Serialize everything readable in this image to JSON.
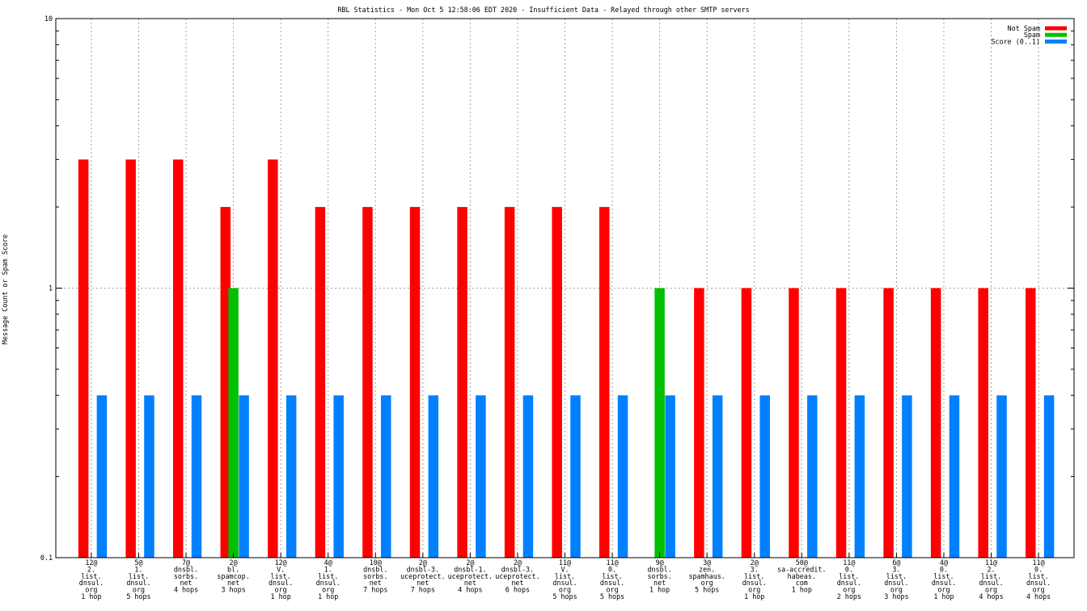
{
  "chart_data": {
    "type": "bar",
    "title": "RBL Statistics - Mon Oct  5 12:58:06 EDT 2020 - Insufficient Data - Relayed through other SMTP servers",
    "xlabel": "",
    "ylabel": "Message Count or Spam Score",
    "y_scale": "log",
    "ylim": [
      0.1,
      10
    ],
    "y_ticks": [
      "0.1",
      "1",
      "10"
    ],
    "grid": true,
    "legend_position": "top-right",
    "categories": [
      [
        "12@",
        "2.",
        "list.",
        "dnsul.",
        "org",
        "1 hop"
      ],
      [
        "5@",
        "1.",
        "list.",
        "dnsul.",
        "org",
        "5 hops"
      ],
      [
        "7@",
        "dnsbl.",
        "sorbs.",
        "net",
        "4 hops"
      ],
      [
        "2@",
        "bl.",
        "spamcop.",
        "net",
        "3 hops"
      ],
      [
        "12@",
        "V.",
        "list.",
        "dnsul.",
        "org",
        "1 hop"
      ],
      [
        "4@",
        "1.",
        "list.",
        "dnsul.",
        "org",
        "1 hop"
      ],
      [
        "10@",
        "dnsbl.",
        "sorbs.",
        "net",
        "7 hops"
      ],
      [
        "2@",
        "dnsbl-3.",
        "uceprotect.",
        "net",
        "7 hops"
      ],
      [
        "2@",
        "dnsbl-1.",
        "uceprotect.",
        "net",
        "4 hops"
      ],
      [
        "2@",
        "dnsbl-3.",
        "uceprotect.",
        "net",
        "6 hops"
      ],
      [
        "11@",
        "V.",
        "list.",
        "dnsul.",
        "org",
        "5 hops"
      ],
      [
        "11@",
        "0.",
        "list.",
        "dnsul.",
        "org",
        "5 hops"
      ],
      [
        "9@",
        "dnsbl.",
        "sorbs.",
        "net",
        "1 hop"
      ],
      [
        "3@",
        "zen.",
        "spamhaus.",
        "org",
        "5 hops"
      ],
      [
        "2@",
        "3.",
        "list.",
        "dnsul.",
        "org",
        "1 hop"
      ],
      [
        "50@",
        "sa-accredit.",
        "habeas.",
        "com",
        "1 hop"
      ],
      [
        "11@",
        "0.",
        "list.",
        "dnsul.",
        "org",
        "2 hops"
      ],
      [
        "6@",
        "3.",
        "list.",
        "dnsul.",
        "org",
        "3 hops"
      ],
      [
        "4@",
        "0.",
        "list.",
        "dnsul.",
        "org",
        "1 hop"
      ],
      [
        "11@",
        "2.",
        "list.",
        "dnsul.",
        "org",
        "4 hops"
      ],
      [
        "11@",
        "0.",
        "list.",
        "dnsul.",
        "org",
        "4 hops"
      ]
    ],
    "series": [
      {
        "name": "Not Spam",
        "color": "#ff0000",
        "values": [
          3,
          3,
          3,
          2,
          3,
          2,
          2,
          2,
          2,
          2,
          2,
          2,
          0,
          1,
          1,
          1,
          1,
          1,
          1,
          1,
          1
        ]
      },
      {
        "name": "Spam",
        "color": "#00c000",
        "values": [
          0,
          0,
          0,
          1,
          0,
          0,
          0,
          0,
          0,
          0,
          0,
          0,
          1,
          0,
          0,
          0,
          0,
          0,
          0,
          0,
          0
        ]
      },
      {
        "name": "Score (0..1)",
        "color": "#0080ff",
        "values": [
          0.4,
          0.4,
          0.4,
          0.4,
          0.4,
          0.4,
          0.4,
          0.4,
          0.4,
          0.4,
          0.4,
          0.4,
          0.4,
          0.4,
          0.4,
          0.4,
          0.4,
          0.4,
          0.4,
          0.4,
          0.4
        ]
      }
    ]
  }
}
